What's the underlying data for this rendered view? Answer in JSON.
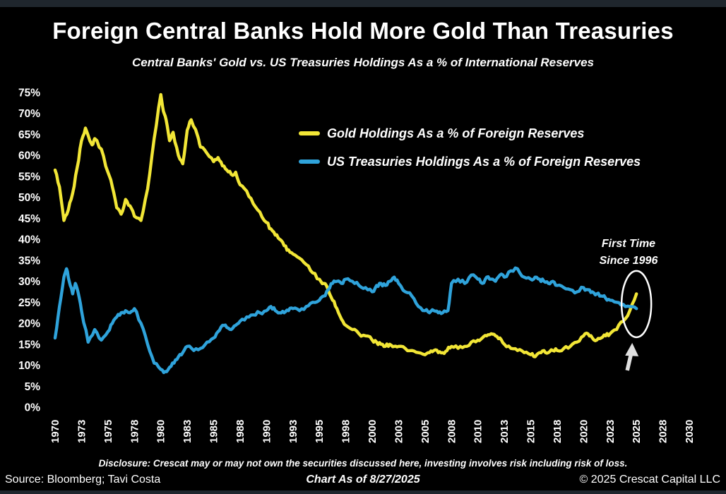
{
  "footer": {
    "disclosure": "Disclosure: Crescat may or may not own the securities discussed here, investing involves risk including risk of loss.",
    "source": "Source: Bloomberg; Tavi Costa",
    "as_of": "Chart As of 8/27/2025",
    "copyright": "© 2025 Crescat Capital LLC"
  },
  "colors": {
    "background": "#000000",
    "frame_strip": "#1f262d",
    "text": "#ffffff",
    "gold_line": "#F2E636",
    "treasuries_line": "#2FA3DB",
    "annotation_arrow": "#e0e0e0"
  },
  "chart_data": {
    "type": "line",
    "title": "Foreign Central Banks Hold More Gold Than Treasuries",
    "subtitle": "Central Banks' Gold vs. US Treasuries Holdings As a % of International Reserves",
    "xlabel": "",
    "ylabel": "",
    "ylim": [
      0,
      75
    ],
    "xlim": [
      1970,
      2030
    ],
    "grid": false,
    "legend_position": "upper center-right",
    "y_tick_labels": [
      "0%",
      "5%",
      "10%",
      "15%",
      "20%",
      "25%",
      "30%",
      "35%",
      "40%",
      "45%",
      "50%",
      "55%",
      "60%",
      "65%",
      "70%",
      "75%"
    ],
    "y_tick_values": [
      0,
      5,
      10,
      15,
      20,
      25,
      30,
      35,
      40,
      45,
      50,
      55,
      60,
      65,
      70,
      75
    ],
    "x_tick_years": [
      1970,
      1973,
      1975,
      1978,
      1980,
      1983,
      1985,
      1988,
      1990,
      1993,
      1995,
      1998,
      2000,
      2003,
      2005,
      2008,
      2010,
      2013,
      2015,
      2018,
      2020,
      2023,
      2025,
      2028,
      2030
    ],
    "x_tick_labels": [
      "1970",
      "1973",
      "1975",
      "1978",
      "1980",
      "1983",
      "1985",
      "1988",
      "1990",
      "1993",
      "1995",
      "1998",
      "2000",
      "2003",
      "2005",
      "2008",
      "2010",
      "2013",
      "2015",
      "2018",
      "2020",
      "2023",
      "2025",
      "2028",
      "2030"
    ],
    "annotation": {
      "line1": "First Time",
      "line2": "Since 1996",
      "target_year": 2025
    },
    "series": [
      {
        "id": "gold",
        "name": "Gold Holdings As a % of Foreign Reserves",
        "color": "#F2E636",
        "points": [
          [
            1970,
            56.5
          ],
          [
            1970.5,
            52.5
          ],
          [
            1971,
            44.5
          ],
          [
            1971.5,
            47
          ],
          [
            1972,
            51
          ],
          [
            1972.5,
            57
          ],
          [
            1973,
            63.5
          ],
          [
            1973.3,
            66.5
          ],
          [
            1973.8,
            62.5
          ],
          [
            1974,
            64
          ],
          [
            1974.5,
            61.5
          ],
          [
            1975,
            56
          ],
          [
            1975.5,
            52.5
          ],
          [
            1976,
            47.5
          ],
          [
            1976.5,
            46
          ],
          [
            1977,
            49.5
          ],
          [
            1977.5,
            48
          ],
          [
            1978,
            45.5
          ],
          [
            1978.5,
            44.5
          ],
          [
            1979,
            52
          ],
          [
            1979.5,
            64
          ],
          [
            1980,
            74.5
          ],
          [
            1980.3,
            70.5
          ],
          [
            1980.6,
            68.5
          ],
          [
            1981,
            63.5
          ],
          [
            1981.4,
            65.5
          ],
          [
            1982,
            60
          ],
          [
            1982.5,
            58
          ],
          [
            1983,
            66
          ],
          [
            1983.3,
            68.5
          ],
          [
            1983.8,
            64.5
          ],
          [
            1984,
            62
          ],
          [
            1984.5,
            60.5
          ],
          [
            1985,
            58.5
          ],
          [
            1985.5,
            59.5
          ],
          [
            1986,
            57.5
          ],
          [
            1986.5,
            56.5
          ],
          [
            1987,
            55.5
          ],
          [
            1987.5,
            56
          ],
          [
            1988,
            53
          ],
          [
            1988.5,
            51.5
          ],
          [
            1989,
            48.5
          ],
          [
            1989.5,
            46.5
          ],
          [
            1990,
            44
          ],
          [
            1990.5,
            42.5
          ],
          [
            1991,
            41
          ],
          [
            1991.5,
            40
          ],
          [
            1992,
            38.5
          ],
          [
            1992.5,
            37.5
          ],
          [
            1993,
            36.5
          ],
          [
            1993.5,
            35.5
          ],
          [
            1994,
            34
          ],
          [
            1994.5,
            32
          ],
          [
            1995,
            30.5
          ],
          [
            1995.5,
            29.5
          ],
          [
            1996,
            28
          ],
          [
            1996.5,
            25.5
          ],
          [
            1997,
            23.5
          ],
          [
            1997.5,
            21
          ],
          [
            1998,
            19.5
          ],
          [
            1998.5,
            18.5
          ],
          [
            1999,
            17.5
          ],
          [
            1999.5,
            17
          ],
          [
            2000,
            16
          ],
          [
            2000.5,
            15.5
          ],
          [
            2001,
            15
          ],
          [
            2001.5,
            14.5
          ],
          [
            2002,
            15
          ],
          [
            2002.5,
            14.5
          ],
          [
            2003,
            14.5
          ],
          [
            2003.5,
            14
          ],
          [
            2004,
            13.5
          ],
          [
            2004.5,
            13
          ],
          [
            2005,
            12.5
          ],
          [
            2005.5,
            13
          ],
          [
            2006,
            13.5
          ],
          [
            2006.5,
            13
          ],
          [
            2007,
            13
          ],
          [
            2007.5,
            13.5
          ],
          [
            2008,
            14.5
          ],
          [
            2008.5,
            14
          ],
          [
            2009,
            14.5
          ],
          [
            2009.5,
            15.5
          ],
          [
            2010,
            16
          ],
          [
            2010.5,
            16.5
          ],
          [
            2011,
            17
          ],
          [
            2011.5,
            17.5
          ],
          [
            2012,
            17
          ],
          [
            2012.5,
            16.5
          ],
          [
            2013,
            15
          ],
          [
            2013.5,
            14
          ],
          [
            2014,
            13.5
          ],
          [
            2014.5,
            13
          ],
          [
            2015,
            12.5
          ],
          [
            2015.5,
            12
          ],
          [
            2016,
            13
          ],
          [
            2016.5,
            13.5
          ],
          [
            2017,
            13
          ],
          [
            2017.5,
            13.5
          ],
          [
            2018,
            13.5
          ],
          [
            2018.5,
            14
          ],
          [
            2019,
            14.5
          ],
          [
            2019.5,
            15.5
          ],
          [
            2020,
            17
          ],
          [
            2020.5,
            17.5
          ],
          [
            2021,
            16.5
          ],
          [
            2021.5,
            16
          ],
          [
            2022,
            16.5
          ],
          [
            2022.5,
            17
          ],
          [
            2023,
            17.5
          ],
          [
            2023.5,
            18.5
          ],
          [
            2024,
            20.5
          ],
          [
            2024.5,
            23
          ],
          [
            2025,
            27
          ]
        ]
      },
      {
        "id": "treasuries",
        "name": "US Treasuries Holdings As a % of Foreign Reserves",
        "color": "#2FA3DB",
        "points": [
          [
            1970,
            16.5
          ],
          [
            1970.5,
            24
          ],
          [
            1971,
            31
          ],
          [
            1971.3,
            33
          ],
          [
            1971.6,
            30
          ],
          [
            1972,
            27
          ],
          [
            1972.3,
            29.5
          ],
          [
            1972.6,
            27.5
          ],
          [
            1973,
            23
          ],
          [
            1973.5,
            15.5
          ],
          [
            1974,
            18.5
          ],
          [
            1974.5,
            16
          ],
          [
            1975,
            18
          ],
          [
            1975.5,
            20
          ],
          [
            1976,
            21.5
          ],
          [
            1976.5,
            22.5
          ],
          [
            1977,
            23
          ],
          [
            1977.5,
            22.5
          ],
          [
            1978,
            23.5
          ],
          [
            1978.5,
            20
          ],
          [
            1979,
            15
          ],
          [
            1979.5,
            10.5
          ],
          [
            1980,
            9
          ],
          [
            1980.5,
            8.5
          ],
          [
            1981,
            9.5
          ],
          [
            1981.5,
            10.5
          ],
          [
            1982,
            12
          ],
          [
            1982.5,
            13
          ],
          [
            1983,
            14.5
          ],
          [
            1983.5,
            13.5
          ],
          [
            1984,
            14
          ],
          [
            1984.5,
            15.5
          ],
          [
            1985,
            16.5
          ],
          [
            1985.5,
            18
          ],
          [
            1986,
            19.5
          ],
          [
            1986.5,
            19
          ],
          [
            1987,
            18.5
          ],
          [
            1987.5,
            19.5
          ],
          [
            1988,
            20.5
          ],
          [
            1988.5,
            21.5
          ],
          [
            1989,
            22
          ],
          [
            1989.5,
            22.5
          ],
          [
            1990,
            23
          ],
          [
            1990.5,
            24
          ],
          [
            1991,
            23
          ],
          [
            1991.5,
            22.5
          ],
          [
            1992,
            22.5
          ],
          [
            1992.5,
            23
          ],
          [
            1993,
            23.5
          ],
          [
            1993.5,
            23
          ],
          [
            1994,
            24
          ],
          [
            1994.5,
            25
          ],
          [
            1995,
            25.5
          ],
          [
            1995.5,
            26.5
          ],
          [
            1996,
            28
          ],
          [
            1996.5,
            29.5
          ],
          [
            1997,
            30
          ],
          [
            1997.5,
            29.5
          ],
          [
            1998,
            30.5
          ],
          [
            1998.5,
            30
          ],
          [
            1999,
            29
          ],
          [
            1999.5,
            28.5
          ],
          [
            2000,
            27.5
          ],
          [
            2000.5,
            29
          ],
          [
            2001,
            29.5
          ],
          [
            2001.5,
            29
          ],
          [
            2002,
            30
          ],
          [
            2002.5,
            31
          ],
          [
            2003,
            29.5
          ],
          [
            2003.5,
            27.5
          ],
          [
            2004,
            26.5
          ],
          [
            2004.5,
            24
          ],
          [
            2005,
            23
          ],
          [
            2005.5,
            22.5
          ],
          [
            2006,
            23
          ],
          [
            2006.5,
            22.5
          ],
          [
            2007,
            22.5
          ],
          [
            2007.6,
            23
          ],
          [
            2008,
            29.5
          ],
          [
            2008.5,
            30.5
          ],
          [
            2009,
            29.5
          ],
          [
            2009.5,
            31.5
          ],
          [
            2010,
            30.5
          ],
          [
            2010.5,
            29.5
          ],
          [
            2011,
            31
          ],
          [
            2011.5,
            30.5
          ],
          [
            2012,
            30
          ],
          [
            2012.5,
            31.5
          ],
          [
            2013,
            31
          ],
          [
            2013.5,
            32.5
          ],
          [
            2014,
            33
          ],
          [
            2014.5,
            31
          ],
          [
            2015,
            30.5
          ],
          [
            2015.5,
            31
          ],
          [
            2016,
            30.5
          ],
          [
            2016.5,
            30
          ],
          [
            2017,
            29.5
          ],
          [
            2017.5,
            30
          ],
          [
            2018,
            29
          ],
          [
            2018.5,
            28.5
          ],
          [
            2019,
            28
          ],
          [
            2019.5,
            27.5
          ],
          [
            2020,
            28.5
          ],
          [
            2020.5,
            28
          ],
          [
            2021,
            27.5
          ],
          [
            2021.5,
            27
          ],
          [
            2022,
            26.5
          ],
          [
            2022.5,
            26
          ],
          [
            2023,
            25.5
          ],
          [
            2023.5,
            25
          ],
          [
            2024,
            24.5
          ],
          [
            2024.5,
            24
          ],
          [
            2025,
            23.5
          ]
        ]
      }
    ]
  }
}
